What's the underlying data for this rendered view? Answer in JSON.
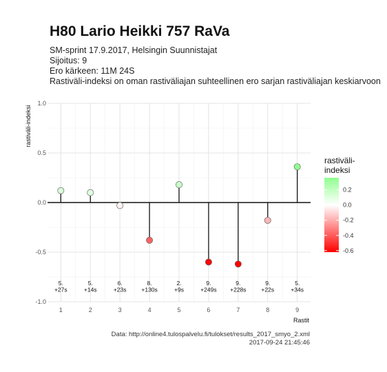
{
  "header": {
    "title": "H80 Lario Heikki 757 RaVa",
    "subtitle_lines": [
      "SM-sprint 17.9.2017, Helsingin Suunnistajat",
      "Sijoitus: 9",
      "Ero kärkeen: 11M 24S",
      "Rastiväli-indeksi on oman rastiväliajan suhteellinen ero sarjan rastiväliajan keskiarvoon"
    ]
  },
  "caption": {
    "source": "Data: http://online4.tulospalvelu.fi/tulokset/results_2017_smyo_2.xml",
    "timestamp": "2017-09-24 21:45:46"
  },
  "chart_data": {
    "type": "scatter",
    "style": "lollipop",
    "x": [
      1,
      2,
      3,
      4,
      5,
      6,
      7,
      8,
      9
    ],
    "values": [
      0.12,
      0.1,
      -0.03,
      -0.38,
      0.18,
      -0.6,
      -0.62,
      -0.18,
      0.36
    ],
    "point_labels": [
      [
        "5.",
        "+27s"
      ],
      [
        "5.",
        "+14s"
      ],
      [
        "6.",
        "+23s"
      ],
      [
        "8.",
        "+130s"
      ],
      [
        "2.",
        "+9s"
      ],
      [
        "9.",
        "+249s"
      ],
      [
        "9.",
        "+228s"
      ],
      [
        "9.",
        "+22s"
      ],
      [
        "5.",
        "+34s"
      ]
    ],
    "xlabel": "Rastit",
    "ylabel": "rastiväli-indeksi",
    "xticks": [
      "1",
      "2",
      "3",
      "4",
      "5",
      "6",
      "7",
      "8",
      "9"
    ],
    "yticks": [
      "-1.0",
      "-0.5",
      "0.0",
      "0.5",
      "1.0"
    ],
    "ytick_values": [
      -1.0,
      -0.5,
      0.0,
      0.5,
      1.0
    ],
    "xlim": [
      0.55,
      9.45
    ],
    "ylim": [
      -1.0,
      1.0
    ],
    "grid": true,
    "legend": {
      "title_lines": [
        "rastiväli-",
        "indeksi"
      ],
      "ticks": [
        "0.2",
        "0.0",
        "-0.2",
        "-0.4",
        "-0.6"
      ],
      "tick_values": [
        0.2,
        0.0,
        -0.2,
        -0.4,
        -0.6
      ],
      "range": [
        -0.62,
        0.36
      ],
      "position": "right"
    },
    "colors": {
      "low": "#ff0000",
      "mid": "#ffffff",
      "high": "#90ff90"
    }
  }
}
